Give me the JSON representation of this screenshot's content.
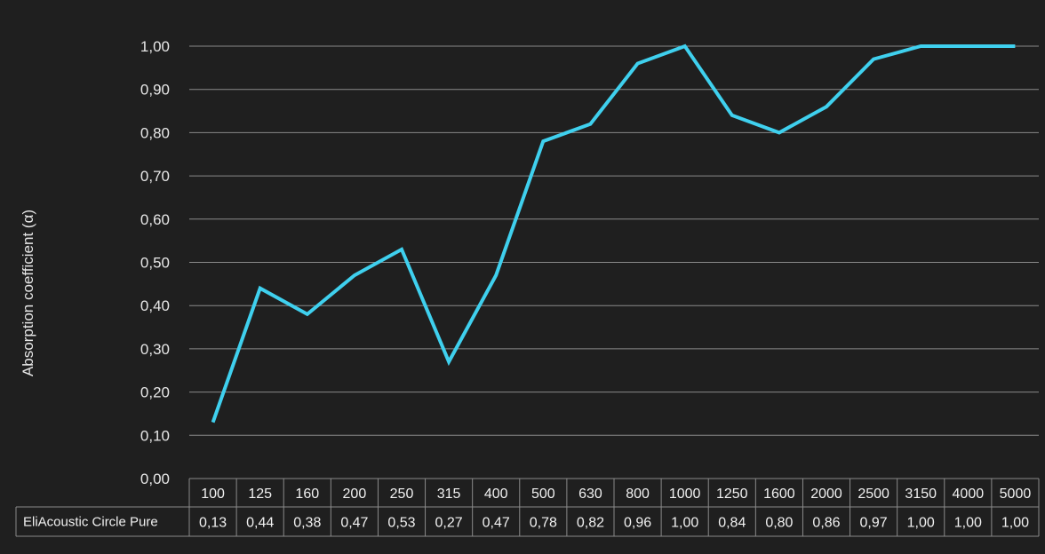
{
  "chart_data": {
    "type": "line",
    "ylabel": "Absorption coefficient (α)",
    "ylim": [
      0,
      1
    ],
    "yticks": [
      "0,00",
      "0,10",
      "0,20",
      "0,30",
      "0,40",
      "0,50",
      "0,60",
      "0,70",
      "0,80",
      "0,90",
      "1,00"
    ],
    "categories": [
      "100",
      "125",
      "160",
      "200",
      "250",
      "315",
      "400",
      "500",
      "630",
      "800",
      "1000",
      "1250",
      "1600",
      "2000",
      "2500",
      "3150",
      "4000",
      "5000"
    ],
    "grid": true,
    "series": [
      {
        "name": "EliAcoustic Circle Pure",
        "values": [
          0.13,
          0.44,
          0.38,
          0.47,
          0.53,
          0.27,
          0.47,
          0.78,
          0.82,
          0.96,
          1.0,
          0.84,
          0.8,
          0.86,
          0.97,
          1.0,
          1.0,
          1.0
        ],
        "labels": [
          "0,13",
          "0,44",
          "0,38",
          "0,47",
          "0,53",
          "0,27",
          "0,47",
          "0,78",
          "0,82",
          "0,96",
          "1,00",
          "0,84",
          "0,80",
          "0,86",
          "0,97",
          "1,00",
          "1,00",
          "1,00"
        ],
        "color": "#3fd0ee"
      }
    ],
    "data_table": true
  },
  "colors": {
    "background": "#1f1f1f",
    "grid": "#8a8a8a",
    "text": "#e6e6e6",
    "line": "#3fd0ee"
  }
}
